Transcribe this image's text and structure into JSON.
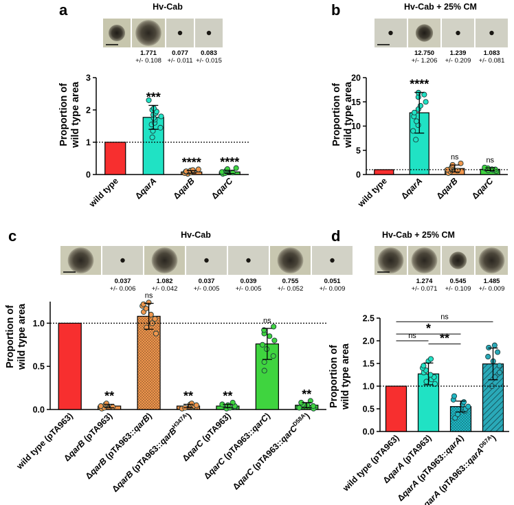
{
  "colors": {
    "wild_type": "#f72f2f",
    "teal": "#20e2c4",
    "orange": "#f0964d",
    "green": "#3fd43f",
    "axis": "#000000"
  },
  "panels": {
    "a": {
      "label": "a",
      "title": "Hv-Cab",
      "photos": [
        {
          "colony": "medium",
          "bg": "#c7c6ad"
        },
        {
          "colony": "large",
          "bg": "#cac9b3"
        },
        {
          "colony": "dot",
          "bg": "#cfcfc1"
        },
        {
          "colony": "dot",
          "bg": "#cfcfc3"
        }
      ],
      "photo_values": [
        {
          "value": "",
          "err": ""
        },
        {
          "value": "1.771",
          "err": "+/- 0.108"
        },
        {
          "value": "0.077",
          "err": "+/- 0.011"
        },
        {
          "value": "0.083",
          "err": "+/- 0.015"
        }
      ],
      "ylabel_line1": "Proportion of",
      "ylabel_line2": "wild type area"
    },
    "b": {
      "label": "b",
      "title": "Hv-Cab + 25% CM",
      "photos": [
        {
          "colony": "dot",
          "bg": "#cfcfc3"
        },
        {
          "colony": "medium",
          "bg": "#cecdbb"
        },
        {
          "colony": "dot",
          "bg": "#d2d2c6"
        },
        {
          "colony": "dot",
          "bg": "#d0d0c4"
        }
      ],
      "photo_values": [
        {
          "value": "",
          "err": ""
        },
        {
          "value": "12.750",
          "err": "+/- 1.206"
        },
        {
          "value": "1.239",
          "err": "+/- 0.209"
        },
        {
          "value": "1.083",
          "err": "+/- 0.081"
        }
      ],
      "ylabel_line1": "Proportion of",
      "ylabel_line2": "wild type area"
    },
    "c": {
      "label": "c",
      "title": "Hv-Cab",
      "photos": [
        {
          "colony": "large",
          "bg": "#cbcab4"
        },
        {
          "colony": "dot",
          "bg": "#d0d0c3"
        },
        {
          "colony": "large",
          "bg": "#c9c8b2"
        },
        {
          "colony": "dot",
          "bg": "#d1d1c5"
        },
        {
          "colony": "dot",
          "bg": "#d1d1c5"
        },
        {
          "colony": "large",
          "bg": "#c8c7b0"
        },
        {
          "colony": "dot",
          "bg": "#d2d2c6"
        }
      ],
      "photo_values": [
        {
          "value": "",
          "err": ""
        },
        {
          "value": "0.037",
          "err": "+/- 0.006"
        },
        {
          "value": "1.082",
          "err": "+/- 0.042"
        },
        {
          "value": "0.037",
          "err": "+/- 0.005"
        },
        {
          "value": "0.039",
          "err": "+/- 0.005"
        },
        {
          "value": "0.755",
          "err": "+/- 0.052"
        },
        {
          "value": "0.051",
          "err": "+/- 0.009"
        }
      ],
      "ylabel_line1": "Proportion of",
      "ylabel_line2": "wild type area"
    },
    "d": {
      "label": "d",
      "title": "Hv-Cab + 25% CM",
      "photos": [
        {
          "colony": "large",
          "bg": "#cbcab6"
        },
        {
          "colony": "large",
          "bg": "#cbcab5"
        },
        {
          "colony": "medium",
          "bg": "#cfcebd"
        },
        {
          "colony": "large",
          "bg": "#c9c8b3"
        }
      ],
      "photo_values": [
        {
          "value": "",
          "err": ""
        },
        {
          "value": "1.274",
          "err": "+/- 0.071"
        },
        {
          "value": "0.545",
          "err": "+/- 0.109"
        },
        {
          "value": "1.485",
          "err": "+/- 0.009"
        }
      ],
      "ylabel_line1": "Proportion of",
      "ylabel_line2": "wild type area"
    }
  },
  "chart_data": [
    {
      "panel": "a",
      "type": "bar",
      "title": "Hv-Cab",
      "ylabel": "Proportion of wild type area",
      "ylim": [
        0,
        3
      ],
      "yticks": [
        "0",
        "1",
        "2",
        "3"
      ],
      "reference_line": 1,
      "categories": [
        {
          "pre": "",
          "gene": "",
          "post": "wild type",
          "sup": ""
        },
        {
          "pre": "Δ",
          "gene": "qarA",
          "post": "",
          "sup": ""
        },
        {
          "pre": "Δ",
          "gene": "qarB",
          "post": "",
          "sup": ""
        },
        {
          "pre": "Δ",
          "gene": "qarC",
          "post": "",
          "sup": ""
        }
      ],
      "values": [
        1.0,
        1.77,
        0.08,
        0.08
      ],
      "error": [
        0,
        0.37,
        0.04,
        0.05
      ],
      "colors": [
        "#f72f2f",
        "#20e2c4",
        "#f0964d",
        "#3fd43f"
      ],
      "patterns": [
        "",
        "",
        "",
        ""
      ],
      "points": [
        [],
        [
          1.15,
          1.35,
          1.45,
          1.55,
          1.6,
          1.7,
          1.75,
          1.8,
          1.85,
          1.9,
          1.95,
          2.0,
          2.05,
          2.3
        ],
        [
          0.02,
          0.04,
          0.06,
          0.08,
          0.09,
          0.1,
          0.12,
          0.14,
          0.16
        ],
        [
          0.02,
          0.04,
          0.06,
          0.08,
          0.1,
          0.12,
          0.14,
          0.17,
          0.2
        ]
      ],
      "significance": [
        "",
        "***",
        "****",
        "****"
      ],
      "brackets": []
    },
    {
      "panel": "b",
      "type": "bar",
      "title": "Hv-Cab + 25% CM",
      "ylabel": "Proportion of wild type area",
      "ylim": [
        0,
        20
      ],
      "yticks": [
        "0",
        "5",
        "10",
        "15",
        "20"
      ],
      "reference_line": 1,
      "categories": [
        {
          "pre": "",
          "gene": "",
          "post": "wild type",
          "sup": ""
        },
        {
          "pre": "Δ",
          "gene": "qarA",
          "post": "",
          "sup": ""
        },
        {
          "pre": "Δ",
          "gene": "qarB",
          "post": "",
          "sup": ""
        },
        {
          "pre": "Δ",
          "gene": "qarC",
          "post": "",
          "sup": ""
        }
      ],
      "values": [
        1.0,
        12.75,
        1.24,
        1.08
      ],
      "error": [
        0,
        4.2,
        0.72,
        0.28
      ],
      "colors": [
        "#f72f2f",
        "#20e2c4",
        "#f0964d",
        "#3fd43f"
      ],
      "patterns": [
        "",
        "",
        "",
        ""
      ],
      "points": [
        [],
        [
          7.2,
          9.0,
          10.2,
          11.0,
          12.0,
          12.8,
          13.5,
          14.2,
          15.0,
          16.0,
          16.5,
          16.9
        ],
        [
          0.3,
          0.6,
          0.8,
          1.0,
          1.2,
          1.4,
          1.7,
          2.0,
          2.3
        ],
        [
          0.7,
          0.85,
          0.95,
          1.05,
          1.1,
          1.2,
          1.3,
          1.45
        ]
      ],
      "significance": [
        "",
        "****",
        "ns",
        "ns"
      ],
      "brackets": []
    },
    {
      "panel": "c",
      "type": "bar",
      "title": "Hv-Cab",
      "ylabel": "Proportion of wild type area",
      "ylim": [
        0,
        1.25
      ],
      "yticks": [
        "0.0",
        "0.5",
        "1.0"
      ],
      "reference_line": 1,
      "categories": [
        {
          "pre": "",
          "gene": "",
          "post": "wild type (pTA963)",
          "sup": ""
        },
        {
          "pre": "Δ",
          "gene": "qarB",
          "post": " (pTA963)",
          "sup": ""
        },
        {
          "pre": "Δ",
          "gene": "qarB",
          "post": " (pTA963::",
          "post_gene": "qarB",
          "end": ")",
          "sup": ""
        },
        {
          "pre": "Δ",
          "gene": "qarB",
          "post": " (pTA963::",
          "post_gene": "qarB",
          "sup": "H347A",
          "end": ")"
        },
        {
          "pre": "Δ",
          "gene": "qarC",
          "post": " (pTA963)",
          "sup": ""
        },
        {
          "pre": "Δ",
          "gene": "qarC",
          "post": " (pTA963::",
          "post_gene": "qarC",
          "end": ")",
          "sup": ""
        },
        {
          "pre": "Δ",
          "gene": "qarC",
          "post": " (pTA963::",
          "post_gene": "qarC",
          "sup": "D58A",
          "end": ")"
        }
      ],
      "values": [
        1.0,
        0.04,
        1.08,
        0.04,
        0.04,
        0.76,
        0.05
      ],
      "error": [
        0,
        0.02,
        0.15,
        0.02,
        0.02,
        0.18,
        0.03
      ],
      "colors": [
        "#f72f2f",
        "#f0964d",
        "#f0964d",
        "#f0964d",
        "#3fd43f",
        "#3fd43f",
        "#3fd43f"
      ],
      "patterns": [
        "",
        "",
        "dots",
        "dots",
        "",
        "",
        "dots"
      ],
      "points": [
        [],
        [
          0.01,
          0.02,
          0.03,
          0.04,
          0.05,
          0.06,
          0.07
        ],
        [
          0.88,
          0.95,
          1.0,
          1.05,
          1.1,
          1.13,
          1.17,
          1.2,
          1.22,
          1.24
        ],
        [
          0.01,
          0.02,
          0.03,
          0.04,
          0.05,
          0.06,
          0.07
        ],
        [
          0.01,
          0.02,
          0.03,
          0.04,
          0.05,
          0.06,
          0.08
        ],
        [
          0.45,
          0.55,
          0.62,
          0.7,
          0.75,
          0.8,
          0.85,
          0.88,
          0.92,
          0.96
        ],
        [
          0.01,
          0.02,
          0.04,
          0.05,
          0.06,
          0.08,
          0.1
        ]
      ],
      "significance": [
        "",
        "**",
        "ns",
        "**",
        "**",
        "ns",
        "**"
      ],
      "brackets": []
    },
    {
      "panel": "d",
      "type": "bar",
      "title": "Hv-Cab + 25% CM",
      "ylabel": "Proportion of wild type area",
      "ylim": [
        0,
        2.5
      ],
      "yticks": [
        "0.0",
        "0.5",
        "1.0",
        "1.5",
        "2.0",
        "2.5"
      ],
      "reference_line": 1,
      "categories": [
        {
          "pre": "",
          "gene": "",
          "post": "wild type (pTA963)",
          "sup": ""
        },
        {
          "pre": "Δ",
          "gene": "qarA",
          "post": " (pTA963)",
          "sup": ""
        },
        {
          "pre": "Δ",
          "gene": "qarA",
          "post": " (pTA963::",
          "post_gene": "qarA",
          "end": ")",
          "sup": ""
        },
        {
          "pre": "Δ",
          "gene": "qarA",
          "post": " (pTA963::",
          "post_gene": "qarA",
          "sup": "D67A",
          "end": ")"
        }
      ],
      "values": [
        1.0,
        1.27,
        0.55,
        1.49
      ],
      "error": [
        0,
        0.24,
        0.12,
        0.35
      ],
      "colors": [
        "#f72f2f",
        "#20e2c4",
        "#20b7c4",
        "#2aa9b8"
      ],
      "patterns": [
        "",
        "",
        "dots",
        "hatch"
      ],
      "points": [
        [],
        [
          1.05,
          1.1,
          1.15,
          1.2,
          1.25,
          1.3,
          1.35,
          1.4,
          1.45,
          1.55,
          1.6
        ],
        [
          0.3,
          0.38,
          0.45,
          0.5,
          0.55,
          0.6,
          0.65,
          0.7,
          0.78
        ],
        [
          1.0,
          1.2,
          1.3,
          1.45,
          1.55,
          1.65,
          1.75,
          1.85,
          1.9
        ]
      ],
      "significance": [
        "",
        "",
        "",
        ""
      ],
      "brackets": [
        {
          "from": 0,
          "to": 1,
          "label": "ns",
          "y": 2.0
        },
        {
          "from": 0,
          "to": 2,
          "label": "*",
          "y": 2.15
        },
        {
          "from": 1,
          "to": 2,
          "label": "**",
          "y": 1.93
        },
        {
          "from": 0,
          "to": 3,
          "label": "ns",
          "y": 2.42
        }
      ]
    }
  ]
}
